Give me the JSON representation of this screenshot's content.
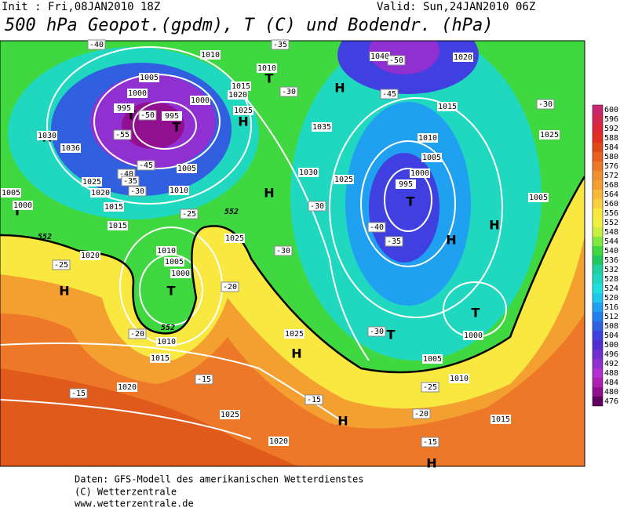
{
  "header": {
    "init": "Init : Fri,08JAN2010 18Z",
    "valid": "Valid: Sun,24JAN2010 06Z",
    "title": "500 hPa Geopot.(gpdm), T (C) und Bodendr. (hPa)"
  },
  "colorbar": [
    {
      "value": 600,
      "color": "#c8286e"
    },
    {
      "value": 596,
      "color": "#d22850"
    },
    {
      "value": 592,
      "color": "#dc2838"
    },
    {
      "value": 588,
      "color": "#e03020"
    },
    {
      "value": 584,
      "color": "#e04818"
    },
    {
      "value": 580,
      "color": "#e86020"
    },
    {
      "value": 576,
      "color": "#ec7828"
    },
    {
      "value": 572,
      "color": "#f09030"
    },
    {
      "value": 568,
      "color": "#f4a030"
    },
    {
      "value": 564,
      "color": "#f8b838"
    },
    {
      "value": 560,
      "color": "#fcd040"
    },
    {
      "value": 556,
      "color": "#f8e840"
    },
    {
      "value": 552,
      "color": "#f0f040"
    },
    {
      "value": 548,
      "color": "#c8f040"
    },
    {
      "value": 544,
      "color": "#80e840"
    },
    {
      "value": 540,
      "color": "#40d840"
    },
    {
      "value": 536,
      "color": "#20c860"
    },
    {
      "value": 532,
      "color": "#20d0a0"
    },
    {
      "value": 528,
      "color": "#20d8c0"
    },
    {
      "value": 524,
      "color": "#20e0e0"
    },
    {
      "value": 520,
      "color": "#20c8f0"
    },
    {
      "value": 516,
      "color": "#20a0f0"
    },
    {
      "value": 512,
      "color": "#2080f0"
    },
    {
      "value": 508,
      "color": "#3060e0"
    },
    {
      "value": 504,
      "color": "#4040e0"
    },
    {
      "value": 500,
      "color": "#5030d0"
    },
    {
      "value": 496,
      "color": "#7030d0"
    },
    {
      "value": 492,
      "color": "#9030d0"
    },
    {
      "value": 488,
      "color": "#b030d0"
    },
    {
      "value": 484,
      "color": "#b020b0"
    },
    {
      "value": 480,
      "color": "#901090"
    },
    {
      "value": 476,
      "color": "#600060"
    }
  ],
  "map": {
    "centers": [
      "H",
      "T",
      "H",
      "H",
      "H",
      "H",
      "H",
      "T",
      "T",
      "T",
      "T",
      "T",
      "H",
      "T",
      "H",
      "H",
      "T",
      "H"
    ],
    "isobars": [
      "1010",
      "1005",
      "1000",
      "995",
      "995",
      "1000",
      "1015",
      "1020",
      "1025",
      "1010",
      "1035",
      "1030",
      "1025",
      "1040",
      "1020",
      "1015",
      "1010",
      "1005",
      "1000",
      "995",
      "1025",
      "1005",
      "1030",
      "1036",
      "1025",
      "1020",
      "1015",
      "1010",
      "1005",
      "1000",
      "1005",
      "1015",
      "1020",
      "1010",
      "1005",
      "1000",
      "1025",
      "1010",
      "1015",
      "1020",
      "1025",
      "1020",
      "1025",
      "1000",
      "1005",
      "1010",
      "1015"
    ],
    "temps": [
      "-40",
      "-35",
      "-50",
      "-45",
      "-30",
      "-30",
      "-50",
      "-55",
      "-45",
      "-40",
      "-35",
      "-30",
      "-25",
      "-30",
      "-30",
      "-40",
      "-35",
      "-25",
      "-20",
      "-20",
      "-15",
      "-15",
      "-15",
      "-30",
      "-25",
      "-20",
      "-15"
    ],
    "heights": [
      "552",
      "552",
      "552"
    ]
  },
  "footer": [
    "Daten: GFS-Modell des amerikanischen Wetterdienstes",
    "(C) Wetterzentrale",
    "www.wetterzentrale.de"
  ]
}
